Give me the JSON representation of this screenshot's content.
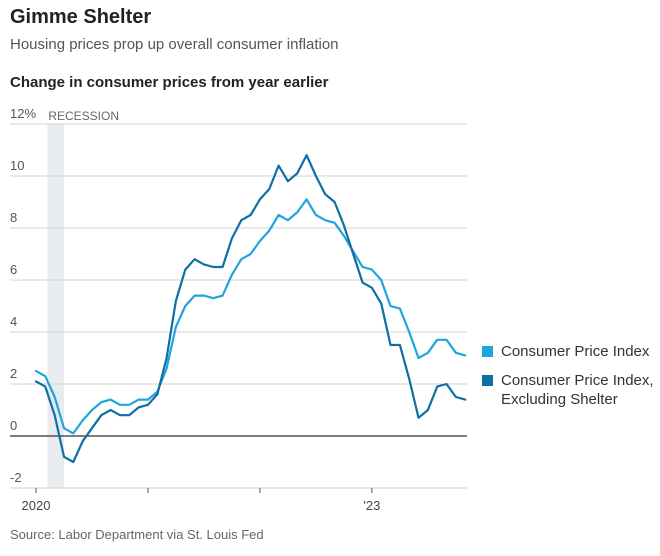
{
  "header": {
    "title": "Gimme Shelter",
    "subtitle": "Housing prices prop up overall consumer inflation",
    "chart_title": "Change in consumer prices from year earlier"
  },
  "footer": {
    "source": "Source: Labor Department via St. Louis Fed"
  },
  "chart_data": {
    "type": "line",
    "title": "Change in consumer prices from year earlier",
    "y_unit_label": "12%",
    "ylim": [
      -3,
      12
    ],
    "y_ticks": [
      12,
      10,
      8,
      6,
      4,
      2,
      0,
      -2
    ],
    "y_tick_labels": [
      "12%",
      "10",
      "8",
      "6",
      "4",
      "2",
      "0",
      "-2"
    ],
    "x_tick_labels": [
      {
        "month_index": 0,
        "label": "2020"
      },
      {
        "month_index": 36,
        "label": "'23"
      }
    ],
    "x_minor_ticks": [
      12,
      24
    ],
    "grid": true,
    "recession": {
      "label": "RECESSION",
      "start_month_index": 1,
      "end_month_index": 3
    },
    "legend_position": "right",
    "series": [
      {
        "name": "Consumer Price Index",
        "color": "#1fa5de",
        "values": [
          2.5,
          2.3,
          1.5,
          0.3,
          0.1,
          0.6,
          1.0,
          1.3,
          1.4,
          1.2,
          1.2,
          1.4,
          1.4,
          1.7,
          2.6,
          4.2,
          5.0,
          5.4,
          5.4,
          5.3,
          5.4,
          6.2,
          6.8,
          7.0,
          7.5,
          7.9,
          8.5,
          8.3,
          8.6,
          9.1,
          8.5,
          8.3,
          8.2,
          7.7,
          7.1,
          6.5,
          6.4,
          6.0,
          5.0,
          4.9,
          4.0,
          3.0,
          3.2,
          3.7,
          3.7,
          3.2,
          3.1
        ]
      },
      {
        "name": "Consumer Price Index, Excluding Shelter",
        "color": "#0d6fa3",
        "values": [
          2.1,
          1.9,
          0.8,
          -0.8,
          -1.0,
          -0.2,
          0.3,
          0.8,
          1.0,
          0.8,
          0.8,
          1.1,
          1.2,
          1.6,
          3.0,
          5.2,
          6.4,
          6.8,
          6.6,
          6.5,
          6.5,
          7.6,
          8.3,
          8.5,
          9.1,
          9.5,
          10.4,
          9.8,
          10.1,
          10.8,
          10.0,
          9.3,
          9.0,
          8.1,
          7.0,
          5.9,
          5.7,
          5.1,
          3.5,
          3.5,
          2.2,
          0.7,
          1.0,
          1.9,
          2.0,
          1.5,
          1.4
        ]
      }
    ]
  }
}
